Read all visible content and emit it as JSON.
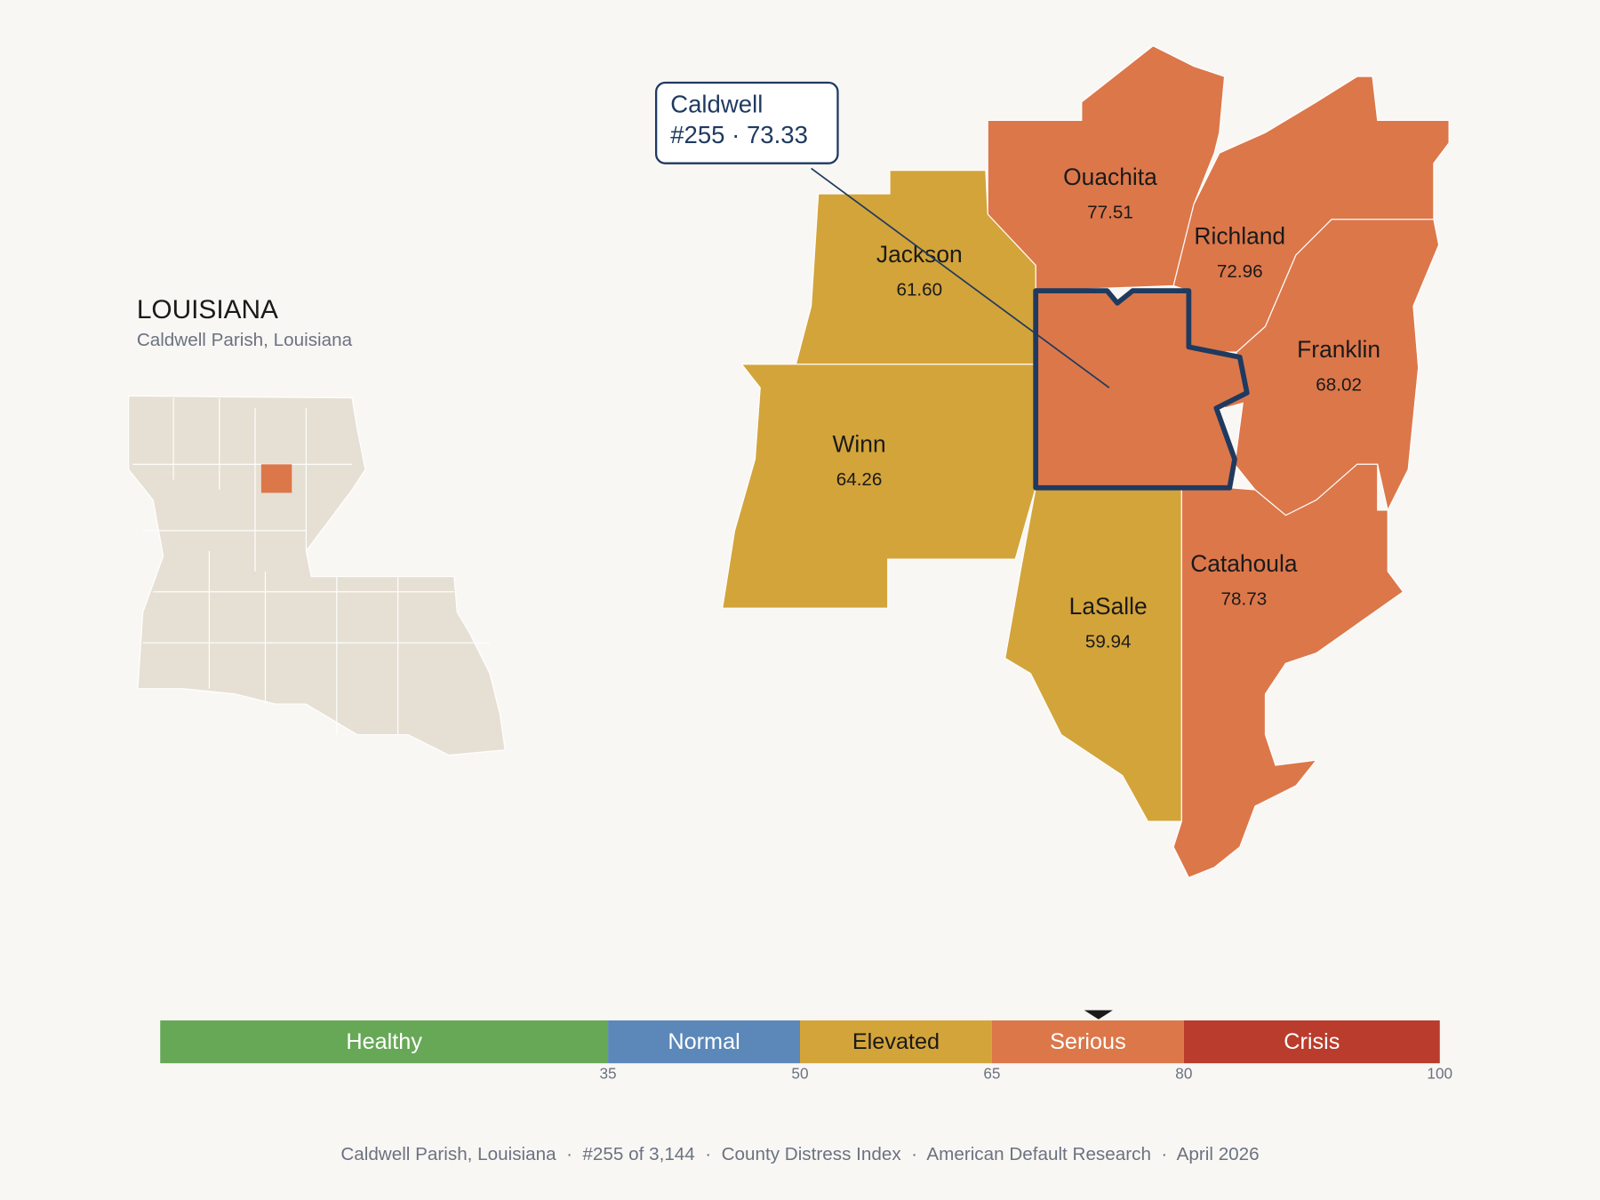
{
  "header": {
    "title": "LOUISIANA",
    "subtitle": "Caldwell Parish, Louisiana"
  },
  "callout": {
    "name": "Caldwell",
    "rank": "#255",
    "separator": " · ",
    "score": 73.33,
    "color": "#dc774a"
  },
  "parishes": [
    {
      "name": "Ouachita",
      "value": "77.51",
      "color": "#dc774a"
    },
    {
      "name": "Richland",
      "value": "72.96",
      "color": "#dc774a"
    },
    {
      "name": "Franklin",
      "value": "68.02",
      "color": "#dc774a"
    },
    {
      "name": "Jackson",
      "value": "61.60",
      "color": "#d3a43a"
    },
    {
      "name": "Winn",
      "value": "64.26",
      "color": "#d3a43a"
    },
    {
      "name": "LaSalle",
      "value": "59.94",
      "color": "#d3a43a"
    },
    {
      "name": "Catahoula",
      "value": "78.73",
      "color": "#dc774a"
    }
  ],
  "scale": {
    "xlim": [
      0,
      100
    ],
    "ticks": [
      35,
      50,
      65,
      80,
      100
    ],
    "segments": [
      {
        "label": "Healthy",
        "color": "#67a857"
      },
      {
        "label": "Normal",
        "color": "#5b88b9"
      },
      {
        "label": "Elevated",
        "color": "#d3a43a"
      },
      {
        "label": "Serious",
        "color": "#dc774a"
      },
      {
        "label": "Crisis",
        "color": "#b93c2c"
      }
    ]
  },
  "footer": "Caldwell Parish, Louisiana  ·  #255 of 3,144  ·  County Distress Index  ·  American Default Research  ·  April 2026"
}
